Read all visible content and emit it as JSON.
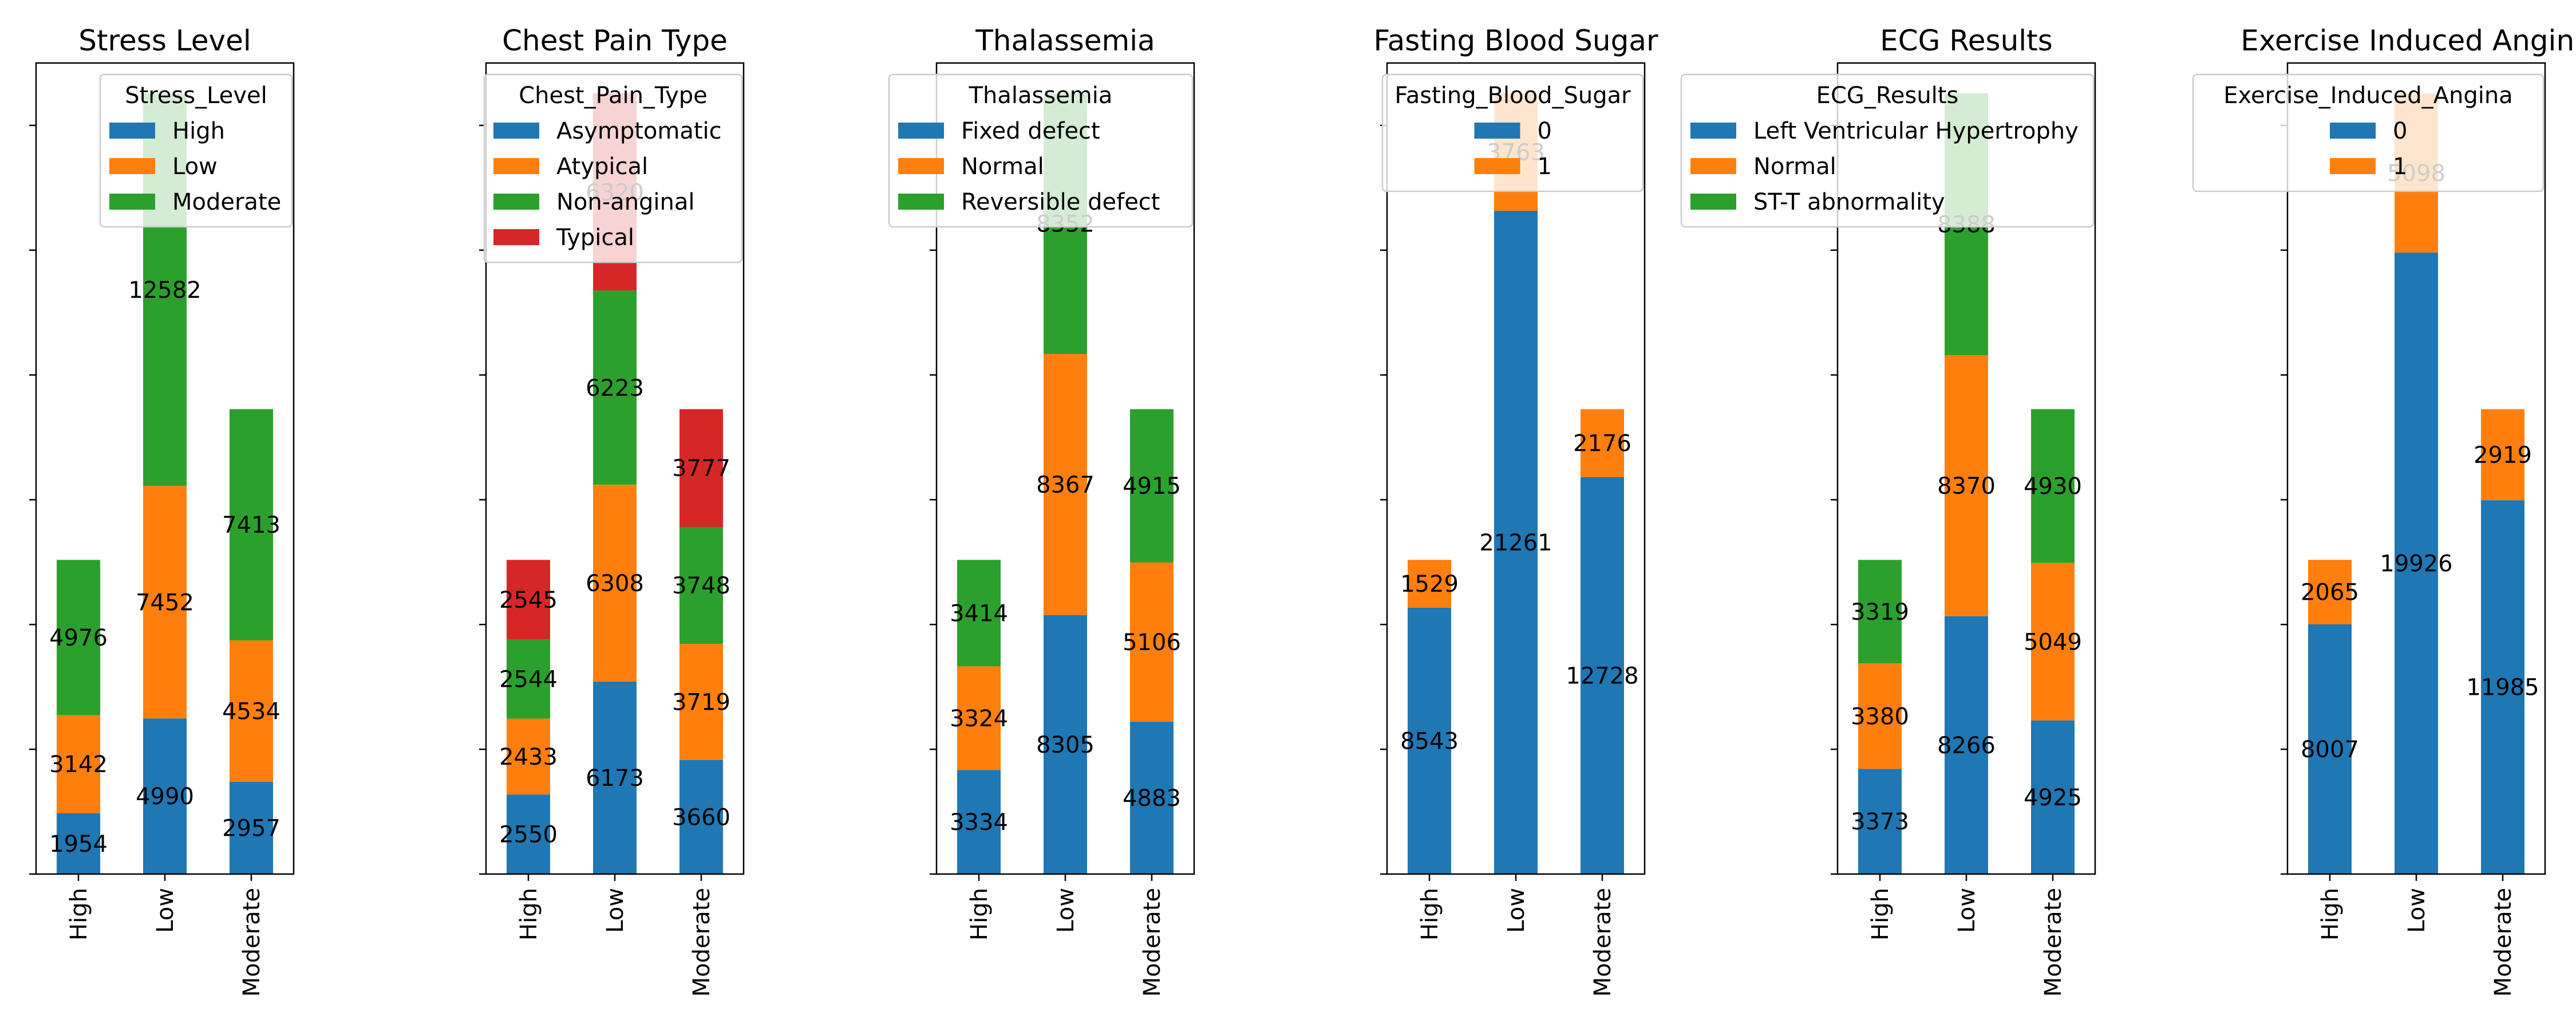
{
  "colors": {
    "blue": "#1f77b4",
    "orange": "#ff7f0e",
    "green": "#2ca02c",
    "red": "#d62728"
  },
  "chart_data": [
    {
      "type": "bar",
      "stacked": true,
      "title": "Stress Level",
      "categories": [
        "High",
        "Low",
        "Moderate"
      ],
      "ylim": [
        0,
        26000
      ],
      "legend": {
        "title": "Stress_Level",
        "placement": "top-right"
      },
      "series": [
        {
          "name": "High",
          "color": "#1f77b4",
          "values": [
            1954,
            4990,
            2957
          ]
        },
        {
          "name": "Low",
          "color": "#ff7f0e",
          "values": [
            3142,
            7452,
            4534
          ]
        },
        {
          "name": "Moderate",
          "color": "#2ca02c",
          "values": [
            4976,
            12582,
            7413
          ]
        }
      ]
    },
    {
      "type": "bar",
      "stacked": true,
      "title": "Chest Pain Type",
      "categories": [
        "High",
        "Low",
        "Moderate"
      ],
      "ylim": [
        0,
        26000
      ],
      "legend": {
        "title": "Chest_Pain_Type",
        "placement": "top-right"
      },
      "series": [
        {
          "name": "Asymptomatic",
          "color": "#1f77b4",
          "values": [
            2550,
            6173,
            3660
          ]
        },
        {
          "name": "Atypical",
          "color": "#ff7f0e",
          "values": [
            2433,
            6308,
            3719
          ]
        },
        {
          "name": "Non-anginal",
          "color": "#2ca02c",
          "values": [
            2544,
            6223,
            3748
          ]
        },
        {
          "name": "Typical",
          "color": "#d62728",
          "values": [
            2545,
            6320,
            3777
          ]
        }
      ]
    },
    {
      "type": "bar",
      "stacked": true,
      "title": "Thalassemia",
      "categories": [
        "High",
        "Low",
        "Moderate"
      ],
      "ylim": [
        0,
        26000
      ],
      "legend": {
        "title": "Thalassemia",
        "placement": "top-right"
      },
      "series": [
        {
          "name": "Fixed defect",
          "color": "#1f77b4",
          "values": [
            3334,
            8305,
            4883
          ]
        },
        {
          "name": "Normal",
          "color": "#ff7f0e",
          "values": [
            3324,
            8367,
            5106
          ]
        },
        {
          "name": "Reversible defect",
          "color": "#2ca02c",
          "values": [
            3414,
            8352,
            4915
          ]
        }
      ]
    },
    {
      "type": "bar",
      "stacked": true,
      "title": "Fasting Blood Sugar",
      "categories": [
        "High",
        "Low",
        "Moderate"
      ],
      "ylim": [
        0,
        26000
      ],
      "legend": {
        "title": "Fasting_Blood_Sugar",
        "placement": "top-right"
      },
      "series": [
        {
          "name": "0",
          "color": "#1f77b4",
          "values": [
            8543,
            21261,
            12728
          ]
        },
        {
          "name": "1",
          "color": "#ff7f0e",
          "values": [
            1529,
            3763,
            2176
          ]
        }
      ]
    },
    {
      "type": "bar",
      "stacked": true,
      "title": "ECG Results",
      "categories": [
        "High",
        "Low",
        "Moderate"
      ],
      "ylim": [
        0,
        26000
      ],
      "legend": {
        "title": "ECG_Results",
        "placement": "top-right"
      },
      "series": [
        {
          "name": "Left Ventricular Hypertrophy",
          "color": "#1f77b4",
          "values": [
            3373,
            8266,
            4925
          ]
        },
        {
          "name": "Normal",
          "color": "#ff7f0e",
          "values": [
            3380,
            8370,
            5049
          ]
        },
        {
          "name": "ST-T abnormality",
          "color": "#2ca02c",
          "values": [
            3319,
            8388,
            4930
          ]
        }
      ]
    },
    {
      "type": "bar",
      "stacked": true,
      "title": "Exercise Induced Angina",
      "categories": [
        "High",
        "Low",
        "Moderate"
      ],
      "ylim": [
        0,
        26000
      ],
      "legend": {
        "title": "Exercise_Induced_Angina",
        "placement": "top-right"
      },
      "series": [
        {
          "name": "0",
          "color": "#1f77b4",
          "values": [
            8007,
            19926,
            11985
          ]
        },
        {
          "name": "1",
          "color": "#ff7f0e",
          "values": [
            2065,
            5098,
            2919
          ]
        }
      ]
    }
  ]
}
